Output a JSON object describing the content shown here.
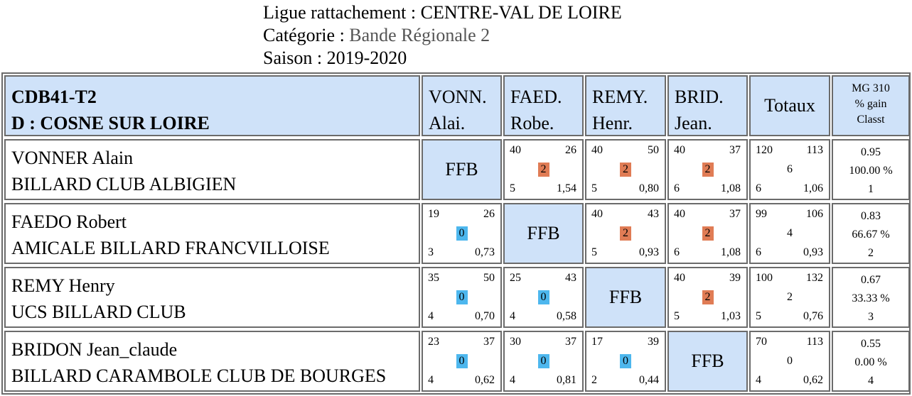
{
  "header": {
    "ligue_label": "Ligue rattachement :",
    "ligue_value": "CENTRE-VAL DE LOIRE",
    "categorie_label": "Catégorie :",
    "categorie_value": "Bande Régionale 2",
    "saison_label": "Saison :",
    "saison_value": "2019-2020"
  },
  "table": {
    "team_code": "CDB41-T2",
    "team_place": "D : COSNE SUR LOIRE",
    "columns": [
      {
        "line1": "VONN.",
        "line2": "Alai."
      },
      {
        "line1": "FAED.",
        "line2": "Robe."
      },
      {
        "line1": "REMY.",
        "line2": "Henr."
      },
      {
        "line1": "BRID.",
        "line2": "Jean."
      }
    ],
    "totals_label": "Totaux",
    "mg_label": "MG 310",
    "gain_label": "% gain",
    "classt_label": "Classt",
    "self_label": "FFB",
    "rows": [
      {
        "name": "VONNER Alain",
        "club": "BILLARD CLUB ALBIGIEN",
        "matches": [
          null,
          {
            "tl": "40",
            "tr": "26",
            "mid": "2",
            "result": "win",
            "bl": "5",
            "br": "1,54"
          },
          {
            "tl": "40",
            "tr": "50",
            "mid": "2",
            "result": "win",
            "bl": "5",
            "br": "0,80"
          },
          {
            "tl": "40",
            "tr": "37",
            "mid": "2",
            "result": "win",
            "bl": "6",
            "br": "1,08"
          }
        ],
        "totals": {
          "tl": "120",
          "tr": "113",
          "mid": "6",
          "bl": "6",
          "br": "1,06"
        },
        "mg": "0.95",
        "gain": "100.00 %",
        "classt": "1"
      },
      {
        "name": "FAEDO Robert",
        "club": "AMICALE BILLARD FRANCVILLOISE",
        "matches": [
          {
            "tl": "19",
            "tr": "26",
            "mid": "0",
            "result": "loss",
            "bl": "3",
            "br": "0,73"
          },
          null,
          {
            "tl": "40",
            "tr": "43",
            "mid": "2",
            "result": "win",
            "bl": "5",
            "br": "0,93"
          },
          {
            "tl": "40",
            "tr": "37",
            "mid": "2",
            "result": "win",
            "bl": "6",
            "br": "1,08"
          }
        ],
        "totals": {
          "tl": "99",
          "tr": "106",
          "mid": "4",
          "bl": "6",
          "br": "0,93"
        },
        "mg": "0.83",
        "gain": "66.67 %",
        "classt": "2"
      },
      {
        "name": "REMY Henry",
        "club": "UCS BILLARD CLUB",
        "matches": [
          {
            "tl": "35",
            "tr": "50",
            "mid": "0",
            "result": "loss",
            "bl": "4",
            "br": "0,70"
          },
          {
            "tl": "25",
            "tr": "43",
            "mid": "0",
            "result": "loss",
            "bl": "4",
            "br": "0,58"
          },
          null,
          {
            "tl": "40",
            "tr": "39",
            "mid": "2",
            "result": "win",
            "bl": "5",
            "br": "1,03"
          }
        ],
        "totals": {
          "tl": "100",
          "tr": "132",
          "mid": "2",
          "bl": "5",
          "br": "0,76"
        },
        "mg": "0.67",
        "gain": "33.33 %",
        "classt": "3"
      },
      {
        "name": "BRIDON Jean_claude",
        "club": "BILLARD CARAMBOLE CLUB DE BOURGES",
        "matches": [
          {
            "tl": "23",
            "tr": "37",
            "mid": "0",
            "result": "loss",
            "bl": "4",
            "br": "0,62"
          },
          {
            "tl": "30",
            "tr": "37",
            "mid": "0",
            "result": "loss",
            "bl": "4",
            "br": "0,81"
          },
          {
            "tl": "17",
            "tr": "39",
            "mid": "0",
            "result": "loss",
            "bl": "2",
            "br": "0,44"
          },
          null
        ],
        "totals": {
          "tl": "70",
          "tr": "113",
          "mid": "0",
          "bl": "4",
          "br": "0,62"
        },
        "mg": "0.55",
        "gain": "0.00 %",
        "classt": "4"
      }
    ]
  },
  "colors": {
    "cell_blue": "#cfe2f9",
    "win_badge": "#e07c55",
    "loss_badge": "#4db7ee",
    "border": "#6b6b6b"
  }
}
